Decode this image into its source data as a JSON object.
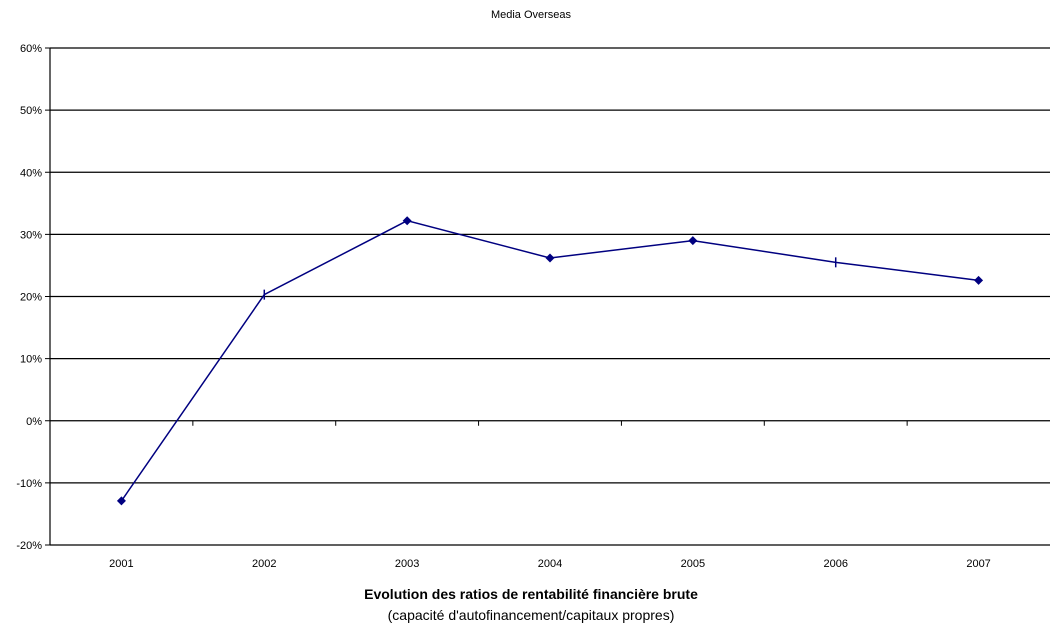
{
  "chart_data": {
    "type": "line",
    "title": "Media Overseas",
    "xlabel": "Evolution des ratios de rentabilité financière brute",
    "xlabel_sub": "(capacité d'autofinancement/capitaux propres)",
    "categories": [
      "2001",
      "2002",
      "2003",
      "2004",
      "2005",
      "2006",
      "2007"
    ],
    "series": [
      {
        "values": [
          -0.129,
          0.203,
          0.322,
          0.262,
          0.29,
          0.255,
          0.226
        ]
      }
    ],
    "markers": [
      "diamond",
      "tick",
      "diamond",
      "diamond",
      "diamond",
      "tick",
      "diamond"
    ],
    "ylim": [
      -0.2,
      0.6
    ],
    "yticks": [
      {
        "value": -0.2,
        "label": "-20%"
      },
      {
        "value": -0.1,
        "label": "-10%"
      },
      {
        "value": 0.0,
        "label": "0%"
      },
      {
        "value": 0.1,
        "label": "10%"
      },
      {
        "value": 0.2,
        "label": "20%"
      },
      {
        "value": 0.3,
        "label": "30%"
      },
      {
        "value": 0.4,
        "label": "40%"
      },
      {
        "value": 0.5,
        "label": "50%"
      },
      {
        "value": 0.6,
        "label": "60%"
      }
    ],
    "grid": true,
    "colors": {
      "line": "#000080",
      "grid": "#000000"
    }
  }
}
